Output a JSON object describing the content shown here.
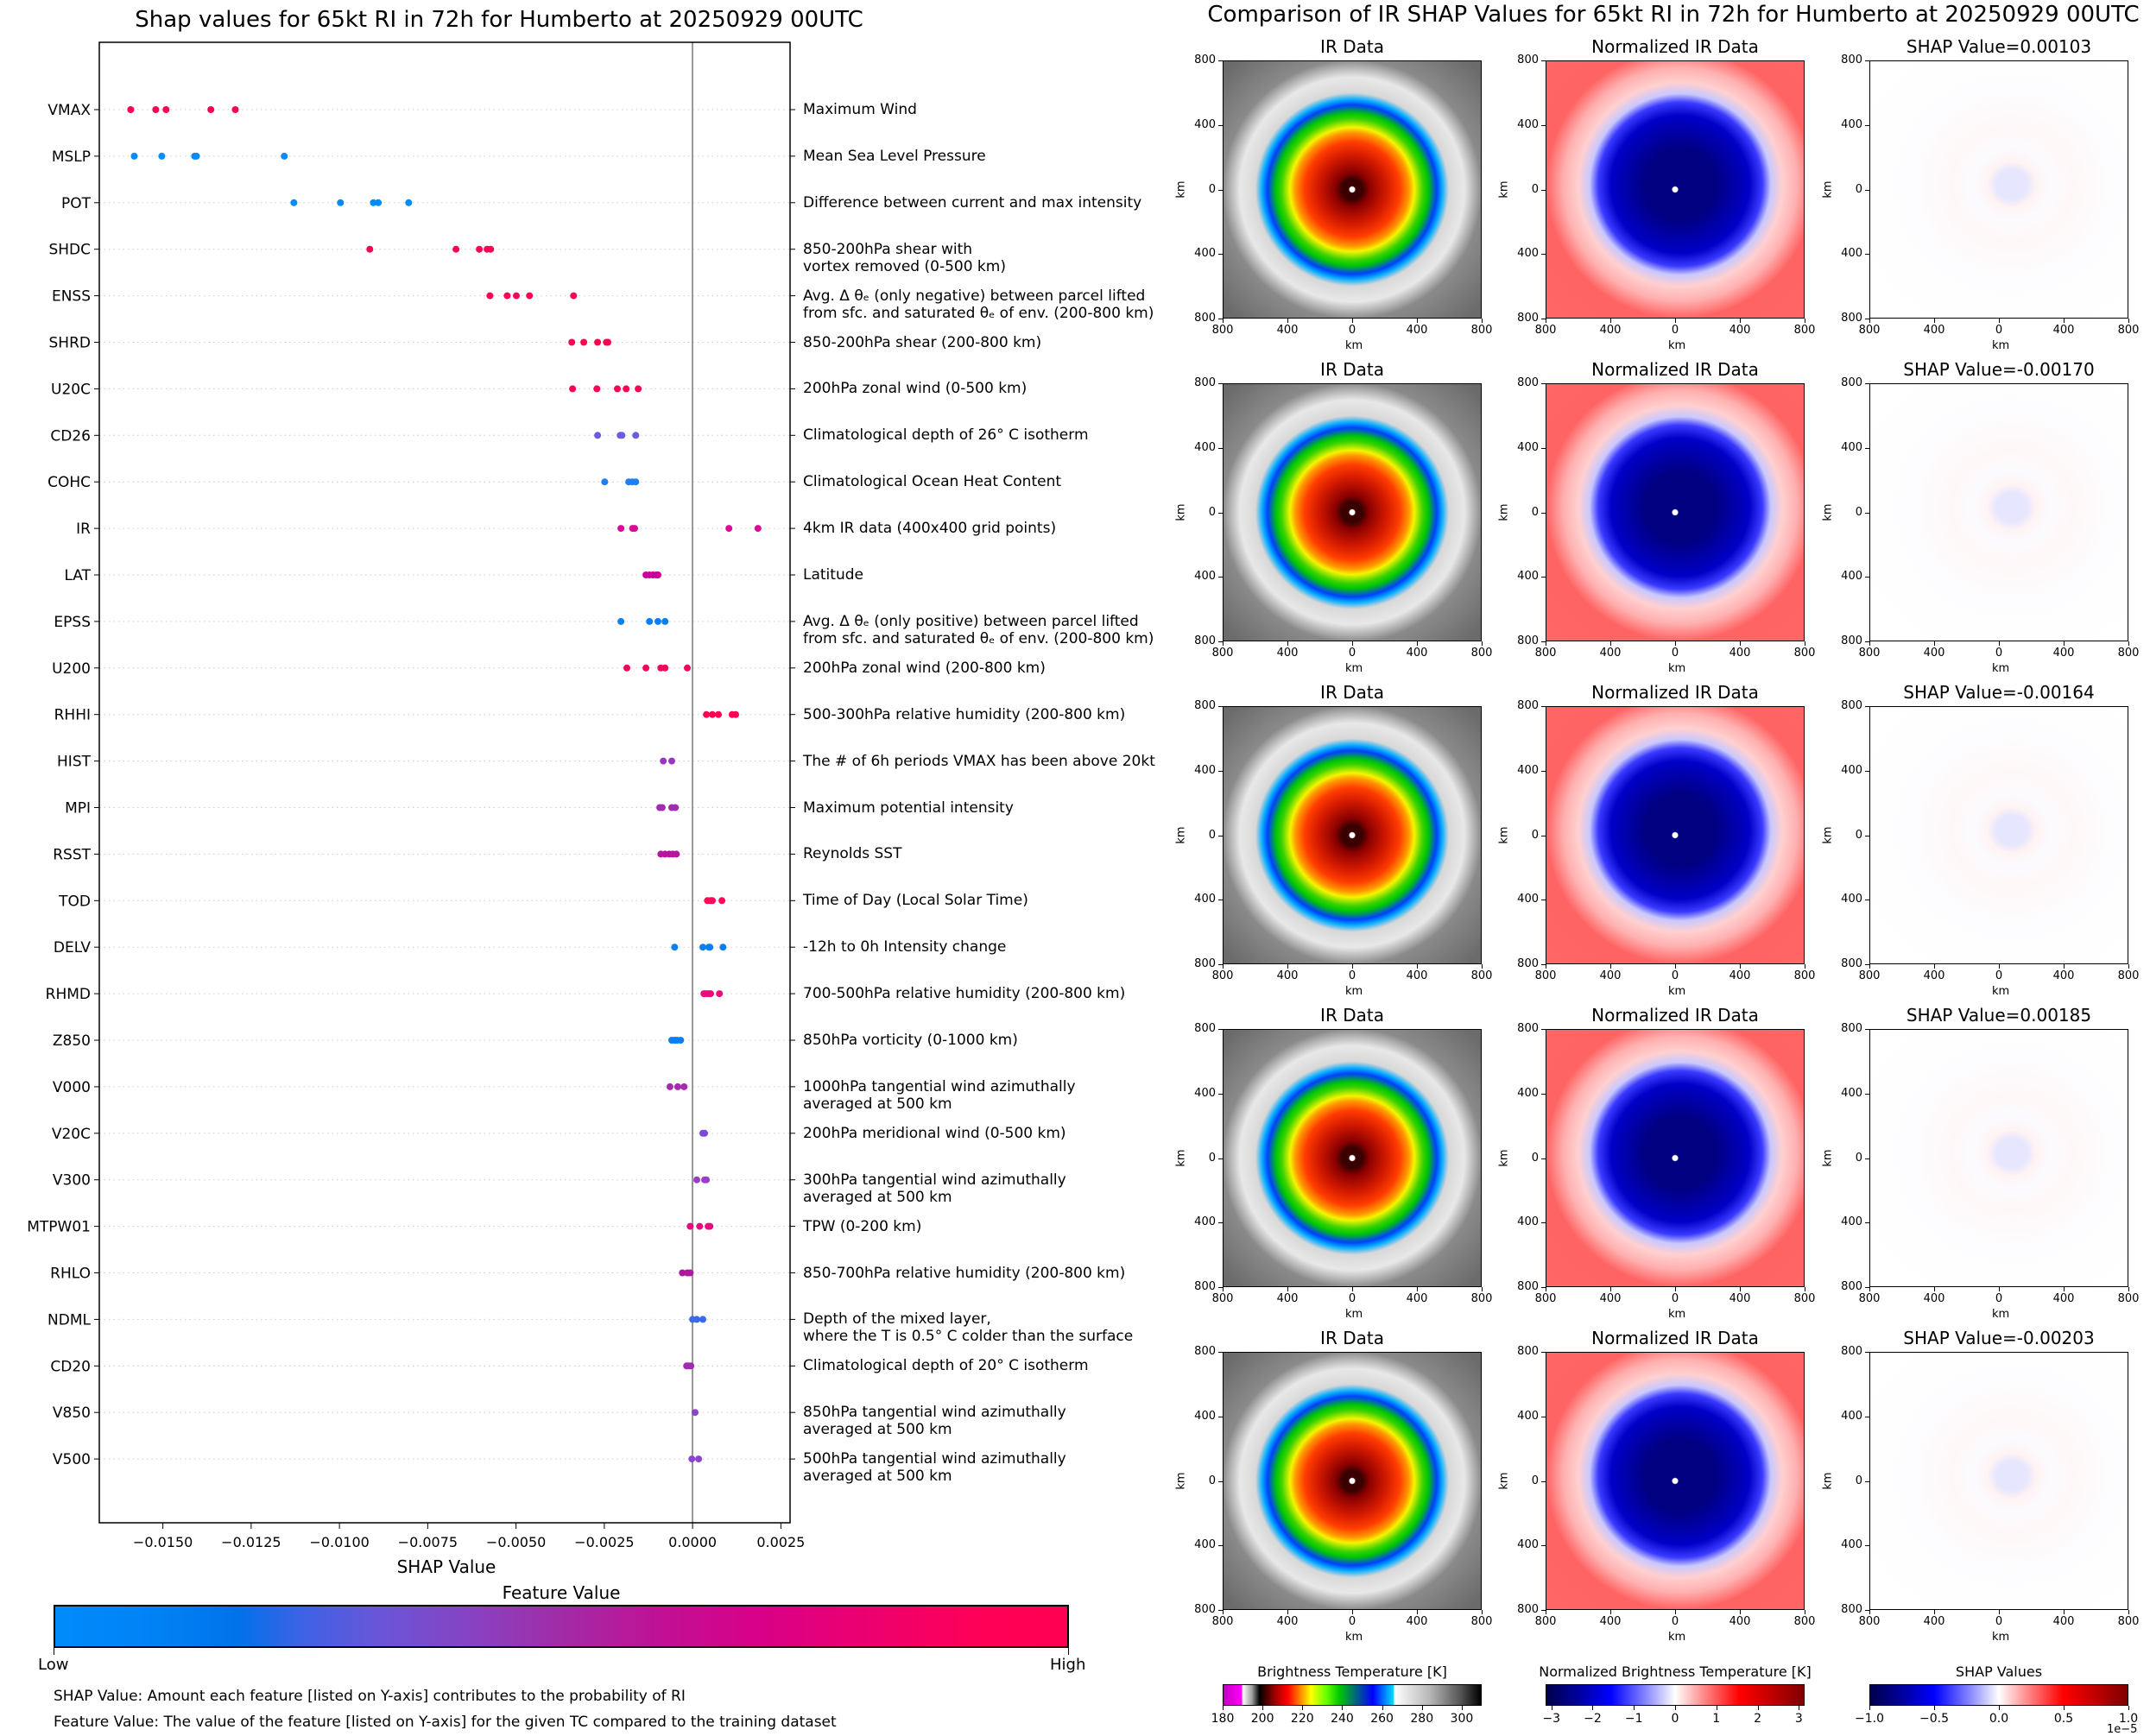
{
  "left": {
    "title": "Shap values for 65kt RI in 72h for Humberto at 20250929 00UTC",
    "colorbar": {
      "title": "Feature Value",
      "low_label": "Low",
      "high_label": "High",
      "low_color": "#008bfb",
      "high_color": "#ff0052"
    },
    "footnotes": [
      "SHAP Value: Amount each feature [listed on Y-axis] contributes to the probability of RI",
      "Feature Value: The value of the feature [listed on Y-axis] for the given TC compared to the training dataset"
    ]
  },
  "chart_data": [
    {
      "type": "scatter",
      "title": "Shap values for 65kt RI in 72h for Humberto at 20250929 00UTC",
      "xlabel": "SHAP Value",
      "ylabel": "",
      "xlim": [
        -0.0168,
        0.00276
      ],
      "xticks": [
        -0.015,
        -0.0125,
        -0.01,
        -0.0075,
        -0.005,
        -0.0025,
        0.0,
        0.0025
      ],
      "xtick_labels": [
        "−0.0150",
        "−0.0125",
        "−0.0100",
        "−0.0075",
        "−0.0050",
        "−0.0025",
        "0.0000",
        "0.0025"
      ],
      "reference_line_x": 0.0,
      "grid": "horizontal dotted",
      "legend": "colorbar bottom (Feature Value: Low blue to High pink)",
      "features": [
        {
          "name": "VMAX",
          "description": "Maximum Wind",
          "color": "#ff0052",
          "shap": [
            -0.01591,
            -0.0152,
            -0.01491,
            -0.01364,
            -0.01295
          ]
        },
        {
          "name": "MSLP",
          "description": "Mean Sea Level Pressure",
          "color": "#008bfb",
          "shap": [
            -0.01581,
            -0.01503,
            -0.0141,
            -0.01405,
            -0.01156
          ]
        },
        {
          "name": "POT",
          "description": "Difference between current and max intensity",
          "color": "#008bfb",
          "shap": [
            -0.01129,
            -0.00997,
            -0.00904,
            -0.0089,
            -0.00804
          ]
        },
        {
          "name": "SHDC",
          "description": "850-200hPa shear with\nvortex removed (0-500 km)",
          "color": "#ff0052",
          "shap": [
            -0.00914,
            -0.0067,
            -0.00604,
            -0.00582,
            -0.00572
          ]
        },
        {
          "name": "ENSS",
          "description": "Avg. Δ θₑ (only negative) between parcel lifted\nfrom sfc. and saturated θₑ of env. (200-800 km)",
          "color": "#ff0052",
          "shap": [
            -0.00574,
            -0.00525,
            -0.00499,
            -0.00462,
            -0.00337
          ]
        },
        {
          "name": "SHRD",
          "description": "850-200hPa shear (200-800 km)",
          "color": "#ff0052",
          "shap": [
            -0.00342,
            -0.00308,
            -0.00269,
            -0.00244,
            -0.0024
          ]
        },
        {
          "name": "U20C",
          "description": "200hPa zonal wind (0-500 km)",
          "color": "#ff0052",
          "shap": [
            -0.0034,
            -0.00271,
            -0.00213,
            -0.00188,
            -0.00154
          ]
        },
        {
          "name": "CD26",
          "description": "Climatological depth of 26° C isotherm",
          "color": "#6a5be4",
          "shap": [
            -0.00269,
            -0.00205,
            -0.002,
            -0.00161
          ]
        },
        {
          "name": "COHC",
          "description": "Climatological Ocean Heat Content",
          "color": "#1e7ff5",
          "shap": [
            -0.00249,
            -0.00181,
            -0.00171,
            -0.00161
          ]
        },
        {
          "name": "IR",
          "description": "4km IR data (400x400 grid points)",
          "color": "#dc0a96",
          "shap": [
            -0.00203,
            -0.0017,
            -0.00164,
            0.00103,
            0.00185
          ]
        },
        {
          "name": "LAT",
          "description": "Latitude",
          "color": "#cc0099",
          "shap": [
            -0.00132,
            -0.00122,
            -0.00112,
            -0.00103,
            -0.00098
          ]
        },
        {
          "name": "EPSS",
          "description": "Avg. Δ θₑ (only positive) between parcel lifted\nfrom sfc. and saturated θₑ of env. (200-800 km)",
          "color": "#0a7ff0",
          "shap": [
            -0.00203,
            -0.00122,
            -0.00098,
            -0.00078
          ]
        },
        {
          "name": "U200",
          "description": "200hPa zonal wind (200-800 km)",
          "color": "#f0085e",
          "shap": [
            -0.00186,
            -0.00132,
            -0.0009,
            -0.00078,
            -0.00015
          ]
        },
        {
          "name": "RHHI",
          "description": "500-300hPa relative humidity (200-800 km)",
          "color": "#ff0052",
          "shap": [
            0.00039,
            0.00056,
            0.00073,
            0.00112,
            0.00122
          ]
        },
        {
          "name": "HIST",
          "description": "The # of 6h periods VMAX has been above 20kt",
          "color": "#9a35c0",
          "shap": [
            -0.00083,
            -0.00059
          ]
        },
        {
          "name": "MPI",
          "description": "Maximum potential intensity",
          "color": "#a02cb0",
          "shap": [
            -0.00093,
            -0.00086,
            -0.00059,
            -0.00049
          ]
        },
        {
          "name": "RSST",
          "description": "Reynolds SST",
          "color": "#b8169e",
          "shap": [
            -0.0009,
            -0.00078,
            -0.00066,
            -0.00056,
            -0.00046
          ]
        },
        {
          "name": "TOD",
          "description": "Time of Day (Local Solar Time)",
          "color": "#ff0a58",
          "shap": [
            0.00042,
            0.00051,
            0.00056,
            0.00083
          ]
        },
        {
          "name": "DELV",
          "description": "-12h to 0h Intensity change",
          "color": "#0a7ff0",
          "shap": [
            -0.00051,
            0.00029,
            0.00046,
            0.00049,
            0.00086
          ]
        },
        {
          "name": "RHMD",
          "description": "700-500hPa relative humidity (200-800 km)",
          "color": "#ee0a78",
          "shap": [
            0.00032,
            0.00039,
            0.00046,
            0.00051,
            0.00076
          ]
        },
        {
          "name": "Z850",
          "description": "850hPa vorticity (0-1000 km)",
          "color": "#0a7ff0",
          "shap": [
            -0.00059,
            -0.00051,
            -0.00044,
            -0.00034
          ]
        },
        {
          "name": "V000",
          "description": "1000hPa tangential wind azimuthally\naveraged at 500 km",
          "color": "#a82ab0",
          "shap": [
            -0.00064,
            -0.00042,
            -0.00024
          ]
        },
        {
          "name": "V20C",
          "description": "200hPa meridional wind (0-500 km)",
          "color": "#7a4ad8",
          "shap": [
            0.00029,
            0.00034
          ]
        },
        {
          "name": "V300",
          "description": "300hPa tangential wind azimuthally\naveraged at 500 km",
          "color": "#9a3ec8",
          "shap": [
            0.00012,
            0.00034,
            0.00039
          ]
        },
        {
          "name": "MTPW01",
          "description": "TPW (0-200 km)",
          "color": "#e80a80",
          "shap": [
            -7e-05,
            0.0002,
            0.00044,
            0.00049
          ]
        },
        {
          "name": "RHLO",
          "description": "850-700hPa relative humidity (200-800 km)",
          "color": "#b0189e",
          "shap": [
            -0.00029,
            -0.00015,
            -7e-05
          ]
        },
        {
          "name": "NDML",
          "description": "Depth of the mixed layer,\nwhere the T is 0.5° C colder than the surface",
          "color": "#3a6ae8",
          "shap": [
            0.0,
            0.00012,
            0.00029
          ]
        },
        {
          "name": "CD20",
          "description": "Climatological depth of 20° C isotherm",
          "color": "#a02cb0",
          "shap": [
            -0.00017,
            -0.00012,
            -5e-05
          ]
        },
        {
          "name": "V850",
          "description": "850hPa tangential wind azimuthally\naveraged at 500 km",
          "color": "#8a44d0",
          "shap": [
            7e-05
          ]
        },
        {
          "name": "V500",
          "description": "500hPa tangential wind azimuthally\naveraged at 500 km",
          "color": "#8a44d0",
          "shap": [
            -2e-05,
            0.00017
          ]
        }
      ]
    },
    {
      "type": "heatmap",
      "title": "Comparison of IR SHAP Values for 65kt RI in 72h for Humberto at 20250929 00UTC",
      "column_titles": [
        "IR Data",
        "Normalized IR Data",
        "SHAP Value"
      ],
      "xlabel": "km",
      "ylabel": "km",
      "xtick_labels": [
        "800",
        "400",
        "0",
        "400",
        "800"
      ],
      "ytick_labels": [
        "800",
        "400",
        "0",
        "400",
        "800"
      ],
      "rows": [
        {
          "shap_title": "SHAP Value=0.00103",
          "shap_value": 0.00103
        },
        {
          "shap_title": "SHAP Value=-0.00170",
          "shap_value": -0.0017
        },
        {
          "shap_title": "SHAP Value=-0.00164",
          "shap_value": -0.00164
        },
        {
          "shap_title": "SHAP Value=0.00185",
          "shap_value": 0.00185
        },
        {
          "shap_title": "SHAP Value=-0.00203",
          "shap_value": -0.00203
        }
      ],
      "colorbars": [
        {
          "title": "Brightness Temperature [K]",
          "range": [
            180,
            310
          ],
          "ticks": [
            "180",
            "200",
            "220",
            "240",
            "260",
            "280",
            "300"
          ]
        },
        {
          "title": "Normalized Brightness Temperature [K]",
          "range": [
            -3.14,
            3.14
          ],
          "ticks": [
            "−3",
            "−2",
            "−1",
            "0",
            "1",
            "2",
            "3"
          ]
        },
        {
          "title": "SHAP Values",
          "range": [
            -1.0,
            1.0
          ],
          "ticks": [
            "−1.0",
            "−0.5",
            "0.0",
            "0.5",
            "1.0"
          ],
          "offset_label": "1e−5"
        }
      ]
    }
  ]
}
